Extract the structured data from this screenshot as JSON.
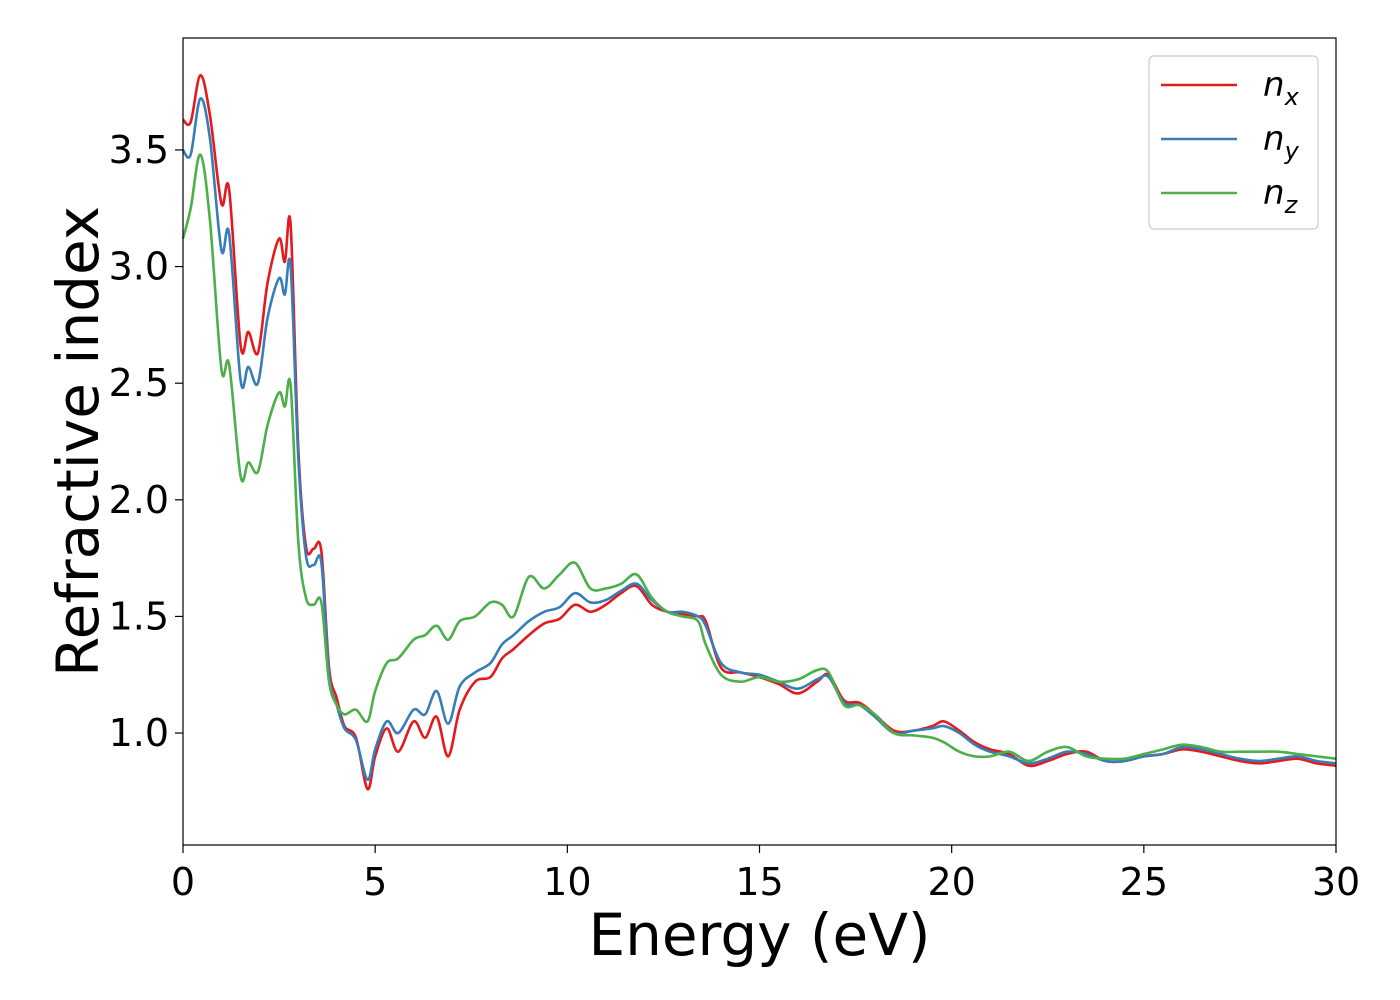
{
  "chart_data": {
    "type": "line",
    "xlabel": "Energy (eV)",
    "ylabel": "Refractive index",
    "xlim": [
      0,
      30
    ],
    "ylim": [
      0.52,
      3.98
    ],
    "xticks": [
      0,
      5,
      10,
      15,
      20,
      25,
      30
    ],
    "xtick_labels": [
      "0",
      "5",
      "10",
      "15",
      "20",
      "25",
      "30"
    ],
    "yticks": [
      1.0,
      1.5,
      2.0,
      2.5,
      3.0,
      3.5
    ],
    "ytick_labels": [
      "1.0",
      "1.5",
      "2.0",
      "2.5",
      "3.0",
      "3.5"
    ],
    "grid": false,
    "legend_position": "top-right",
    "series": [
      {
        "name": "n_x",
        "legend_base": "n",
        "legend_sub": "x",
        "color": "#e41a1c",
        "x": [
          0,
          0.2,
          0.45,
          0.7,
          1.0,
          1.2,
          1.5,
          1.7,
          1.95,
          2.2,
          2.5,
          2.65,
          2.8,
          3.0,
          3.2,
          3.4,
          3.6,
          3.8,
          4.0,
          4.2,
          4.5,
          4.8,
          5.0,
          5.3,
          5.6,
          6.0,
          6.3,
          6.6,
          6.9,
          7.2,
          7.6,
          8.0,
          8.3,
          8.6,
          9.0,
          9.4,
          9.8,
          10.2,
          10.6,
          11.0,
          11.4,
          11.8,
          12.2,
          12.6,
          13.0,
          13.4,
          13.6,
          14.0,
          14.5,
          15.0,
          15.5,
          16.0,
          16.5,
          16.8,
          17.2,
          17.6,
          18.0,
          18.5,
          19.0,
          19.5,
          19.8,
          20.2,
          20.6,
          21.0,
          21.5,
          22.0,
          22.5,
          23.0,
          23.5,
          24.0,
          24.5,
          25.0,
          25.5,
          26.0,
          26.5,
          27.0,
          27.5,
          28.0,
          28.5,
          29.0,
          29.5,
          30.0
        ],
        "y": [
          3.63,
          3.62,
          3.82,
          3.65,
          3.27,
          3.33,
          2.66,
          2.72,
          2.63,
          2.93,
          3.12,
          3.02,
          3.18,
          2.22,
          1.8,
          1.79,
          1.78,
          1.28,
          1.15,
          1.03,
          0.98,
          0.76,
          0.9,
          1.02,
          0.92,
          1.05,
          0.98,
          1.07,
          0.9,
          1.1,
          1.22,
          1.24,
          1.32,
          1.36,
          1.42,
          1.47,
          1.49,
          1.55,
          1.52,
          1.55,
          1.6,
          1.63,
          1.55,
          1.52,
          1.51,
          1.5,
          1.48,
          1.28,
          1.26,
          1.24,
          1.21,
          1.17,
          1.22,
          1.25,
          1.14,
          1.13,
          1.08,
          1.01,
          1.01,
          1.03,
          1.05,
          1.01,
          0.96,
          0.93,
          0.91,
          0.86,
          0.88,
          0.91,
          0.92,
          0.88,
          0.88,
          0.9,
          0.91,
          0.93,
          0.92,
          0.9,
          0.88,
          0.87,
          0.88,
          0.89,
          0.87,
          0.86
        ]
      },
      {
        "name": "n_y",
        "legend_base": "n",
        "legend_sub": "y",
        "color": "#377eb8",
        "x": [
          0,
          0.2,
          0.45,
          0.7,
          1.0,
          1.2,
          1.5,
          1.7,
          1.95,
          2.2,
          2.5,
          2.65,
          2.8,
          3.0,
          3.2,
          3.4,
          3.6,
          3.8,
          4.0,
          4.2,
          4.5,
          4.8,
          5.0,
          5.3,
          5.6,
          6.0,
          6.3,
          6.6,
          6.9,
          7.2,
          7.6,
          8.0,
          8.3,
          8.6,
          9.0,
          9.4,
          9.8,
          10.2,
          10.6,
          11.0,
          11.4,
          11.8,
          12.2,
          12.6,
          13.0,
          13.4,
          13.6,
          14.0,
          14.5,
          15.0,
          15.5,
          16.0,
          16.5,
          16.8,
          17.2,
          17.6,
          18.0,
          18.5,
          19.0,
          19.5,
          19.8,
          20.2,
          20.6,
          21.0,
          21.5,
          22.0,
          22.5,
          23.0,
          23.5,
          24.0,
          24.5,
          25.0,
          25.5,
          26.0,
          26.5,
          27.0,
          27.5,
          28.0,
          28.5,
          29.0,
          29.5,
          30.0
        ],
        "y": [
          3.5,
          3.48,
          3.72,
          3.55,
          3.07,
          3.14,
          2.51,
          2.57,
          2.5,
          2.78,
          2.95,
          2.88,
          3.0,
          2.18,
          1.76,
          1.72,
          1.73,
          1.25,
          1.12,
          1.02,
          0.97,
          0.8,
          0.93,
          1.05,
          1.0,
          1.1,
          1.08,
          1.18,
          1.04,
          1.2,
          1.26,
          1.3,
          1.38,
          1.42,
          1.48,
          1.52,
          1.54,
          1.6,
          1.56,
          1.57,
          1.61,
          1.64,
          1.57,
          1.52,
          1.52,
          1.5,
          1.46,
          1.3,
          1.26,
          1.25,
          1.22,
          1.19,
          1.23,
          1.24,
          1.13,
          1.12,
          1.07,
          1.0,
          1.01,
          1.02,
          1.03,
          1.0,
          0.95,
          0.92,
          0.9,
          0.87,
          0.89,
          0.92,
          0.91,
          0.88,
          0.88,
          0.9,
          0.91,
          0.94,
          0.93,
          0.91,
          0.89,
          0.88,
          0.89,
          0.9,
          0.88,
          0.87
        ]
      },
      {
        "name": "n_z",
        "legend_base": "n",
        "legend_sub": "z",
        "color": "#4daf4a",
        "x": [
          0,
          0.2,
          0.45,
          0.7,
          1.0,
          1.2,
          1.5,
          1.7,
          1.95,
          2.2,
          2.5,
          2.65,
          2.8,
          3.0,
          3.2,
          3.4,
          3.6,
          3.8,
          4.0,
          4.2,
          4.5,
          4.8,
          5.0,
          5.3,
          5.6,
          6.0,
          6.3,
          6.6,
          6.9,
          7.2,
          7.6,
          8.0,
          8.3,
          8.6,
          9.0,
          9.4,
          9.8,
          10.2,
          10.6,
          11.0,
          11.4,
          11.8,
          12.2,
          12.6,
          13.0,
          13.4,
          13.6,
          14.0,
          14.5,
          15.0,
          15.5,
          16.0,
          16.5,
          16.8,
          17.2,
          17.6,
          18.0,
          18.5,
          19.0,
          19.5,
          19.8,
          20.2,
          20.6,
          21.0,
          21.5,
          22.0,
          22.5,
          23.0,
          23.5,
          24.0,
          24.5,
          25.0,
          25.5,
          26.0,
          26.5,
          27.0,
          27.5,
          28.0,
          28.5,
          29.0,
          29.5,
          30.0
        ],
        "y": [
          3.12,
          3.25,
          3.48,
          3.2,
          2.56,
          2.58,
          2.1,
          2.16,
          2.12,
          2.32,
          2.46,
          2.4,
          2.49,
          1.82,
          1.58,
          1.55,
          1.56,
          1.22,
          1.12,
          1.08,
          1.1,
          1.05,
          1.18,
          1.3,
          1.32,
          1.4,
          1.42,
          1.46,
          1.4,
          1.48,
          1.5,
          1.56,
          1.55,
          1.5,
          1.67,
          1.62,
          1.68,
          1.73,
          1.62,
          1.62,
          1.64,
          1.68,
          1.58,
          1.52,
          1.5,
          1.48,
          1.38,
          1.25,
          1.22,
          1.24,
          1.22,
          1.23,
          1.27,
          1.26,
          1.12,
          1.12,
          1.08,
          1.0,
          0.99,
          0.98,
          0.96,
          0.92,
          0.9,
          0.9,
          0.92,
          0.88,
          0.92,
          0.94,
          0.9,
          0.89,
          0.89,
          0.91,
          0.93,
          0.95,
          0.94,
          0.92,
          0.92,
          0.92,
          0.92,
          0.91,
          0.9,
          0.89
        ]
      }
    ]
  }
}
